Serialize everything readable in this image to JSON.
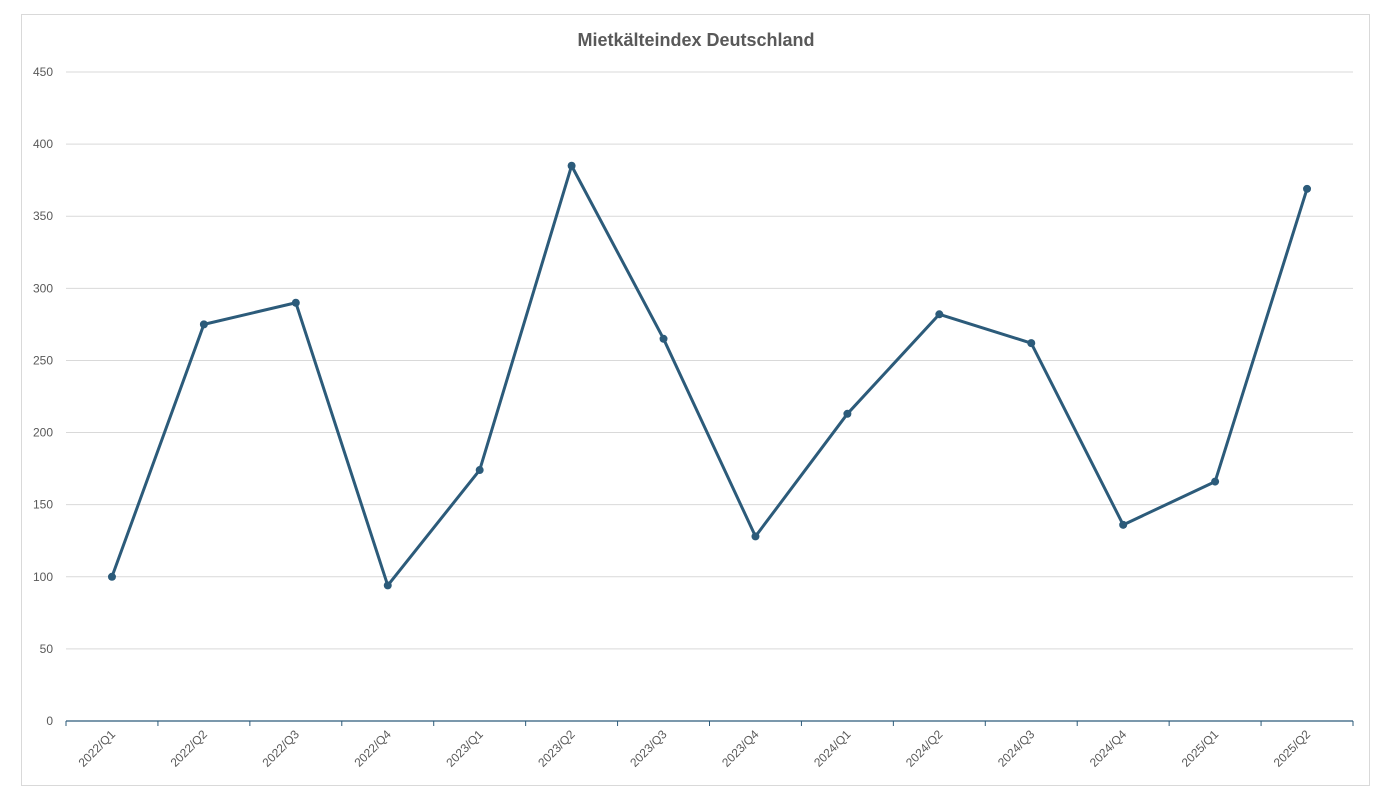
{
  "chart_data": {
    "type": "line",
    "title": "Mietkälteindex Deutschland",
    "xlabel": "",
    "ylabel": "",
    "categories": [
      "2022/Q1",
      "2022/Q2",
      "2022/Q3",
      "2022/Q4",
      "2023/Q1",
      "2023/Q2",
      "2023/Q3",
      "2023/Q4",
      "2024/Q1",
      "2024/Q2",
      "2024/Q3",
      "2024/Q4",
      "2025/Q1",
      "2025/Q2"
    ],
    "series": [
      {
        "values": [
          100,
          275,
          290,
          94,
          174,
          385,
          265,
          128,
          213,
          282,
          262,
          136,
          166,
          369
        ],
        "color": "#2c5b7a"
      }
    ],
    "ylim": [
      0,
      450
    ],
    "yticks": [
      0,
      50,
      100,
      150,
      200,
      250,
      300,
      350,
      400,
      450
    ],
    "grid": true,
    "legend": "none",
    "colors": {
      "gridline": "#d9d9d9",
      "axis": "#2c5b7a",
      "text": "#595959"
    }
  }
}
